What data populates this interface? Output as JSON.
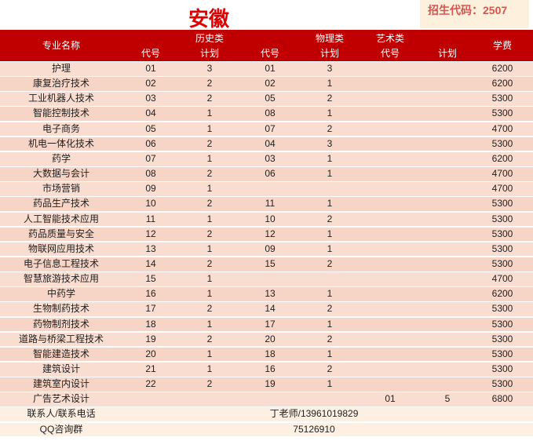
{
  "header": {
    "title": "安徽",
    "code": "招生代码：2507"
  },
  "table": {
    "name_header": "专业名称",
    "fee_header": "学费",
    "groups": [
      "历史类",
      "物理类",
      "艺术类"
    ],
    "sub_headers": [
      "代号",
      "计划",
      "代号",
      "计划",
      "代号",
      "计划"
    ],
    "rows": [
      [
        "护理",
        "01",
        3,
        "01",
        3,
        null,
        null,
        6200
      ],
      [
        "康复治疗技术",
        "02",
        2,
        "02",
        1,
        null,
        null,
        6200
      ],
      [
        "工业机器人技术",
        "03",
        2,
        "05",
        2,
        null,
        null,
        5300
      ],
      [
        "智能控制技术",
        "04",
        1,
        "08",
        1,
        null,
        null,
        5300
      ],
      [
        "电子商务",
        "05",
        1,
        "07",
        2,
        null,
        null,
        4700
      ],
      [
        "机电一体化技术",
        "06",
        2,
        "04",
        3,
        null,
        null,
        5300
      ],
      [
        "药学",
        "07",
        1,
        "03",
        1,
        null,
        null,
        6200
      ],
      [
        "大数据与会计",
        "08",
        2,
        "06",
        1,
        null,
        null,
        4700
      ],
      [
        "市场营销",
        "09",
        1,
        null,
        null,
        null,
        null,
        4700
      ],
      [
        "药品生产技术",
        "10",
        2,
        "11",
        1,
        null,
        null,
        5300
      ],
      [
        "人工智能技术应用",
        "11",
        1,
        "10",
        2,
        null,
        null,
        5300
      ],
      [
        "药品质量与安全",
        "12",
        2,
        "12",
        1,
        null,
        null,
        5300
      ],
      [
        "物联网应用技术",
        "13",
        1,
        "09",
        1,
        null,
        null,
        5300
      ],
      [
        "电子信息工程技术",
        "14",
        2,
        "15",
        2,
        null,
        null,
        5300
      ],
      [
        "智慧旅游技术应用",
        "15",
        1,
        null,
        null,
        null,
        null,
        4700
      ],
      [
        "中药学",
        "16",
        1,
        "13",
        1,
        null,
        null,
        6200
      ],
      [
        "生物制药技术",
        "17",
        2,
        "14",
        2,
        null,
        null,
        5300
      ],
      [
        "药物制剂技术",
        "18",
        1,
        "17",
        1,
        null,
        null,
        5300
      ],
      [
        "道路与桥梁工程技术",
        "19",
        2,
        "20",
        2,
        null,
        null,
        5300
      ],
      [
        "智能建造技术",
        "20",
        1,
        "18",
        1,
        null,
        null,
        5300
      ],
      [
        "建筑设计",
        "21",
        1,
        "16",
        2,
        null,
        null,
        5300
      ],
      [
        "建筑室内设计",
        "22",
        2,
        "19",
        1,
        null,
        null,
        5300
      ],
      [
        "广告艺术设计",
        null,
        null,
        null,
        null,
        "01",
        5,
        6800
      ]
    ]
  },
  "footer": [
    [
      "联系人/联系电话",
      "丁老师/13961019829"
    ],
    [
      "QQ咨询群",
      "75126910"
    ]
  ]
}
